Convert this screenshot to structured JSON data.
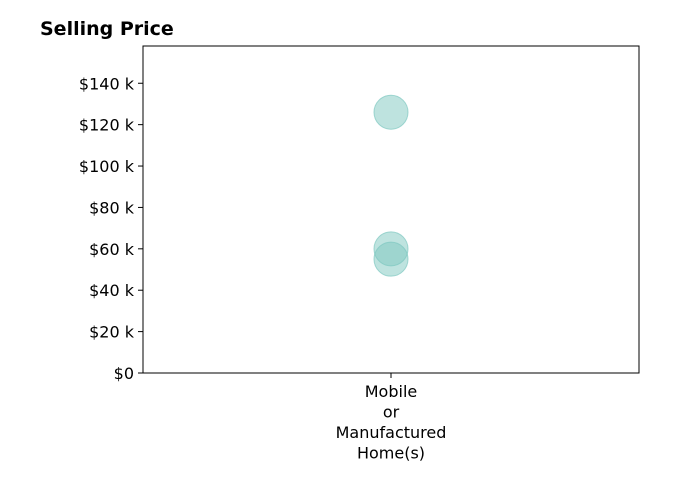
{
  "chart_data": {
    "type": "scatter",
    "title": "Selling Price",
    "xlabel": "",
    "ylabel": "",
    "categories": [
      "Mobile\nor\nManufactured\nHome(s)"
    ],
    "category_lines": [
      "Mobile",
      "or",
      "Manufactured",
      "Home(s)"
    ],
    "series": [
      {
        "points": [
          {
            "category": 0,
            "value": 126000
          },
          {
            "category": 0,
            "value": 60000
          },
          {
            "category": 0,
            "value": 55000
          }
        ]
      }
    ],
    "ylim": [
      0,
      158000
    ],
    "yticks": [
      0,
      20000,
      40000,
      60000,
      80000,
      100000,
      120000,
      140000
    ],
    "ytick_labels": [
      "$0",
      "$20 k",
      "$40 k",
      "$60 k",
      "$80 k",
      "$100 k",
      "$120 k",
      "$140 k"
    ],
    "grid": false,
    "marker_color": "#7ec8c0"
  }
}
